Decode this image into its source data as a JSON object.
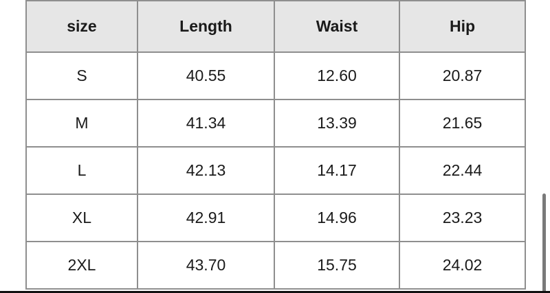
{
  "table": {
    "headers": [
      "size",
      "Length",
      "Waist",
      "Hip"
    ],
    "rows": [
      [
        "S",
        "40.55",
        "12.60",
        "20.87"
      ],
      [
        "M",
        "41.34",
        "13.39",
        "21.65"
      ],
      [
        "L",
        "42.13",
        "14.17",
        "22.44"
      ],
      [
        "XL",
        "42.91",
        "14.96",
        "23.23"
      ],
      [
        "2XL",
        "43.70",
        "15.75",
        "24.02"
      ]
    ]
  },
  "colors": {
    "header_bg": "#e6e6e6",
    "border": "#8e8e8e",
    "scrollbar": "#7a7a7a"
  }
}
